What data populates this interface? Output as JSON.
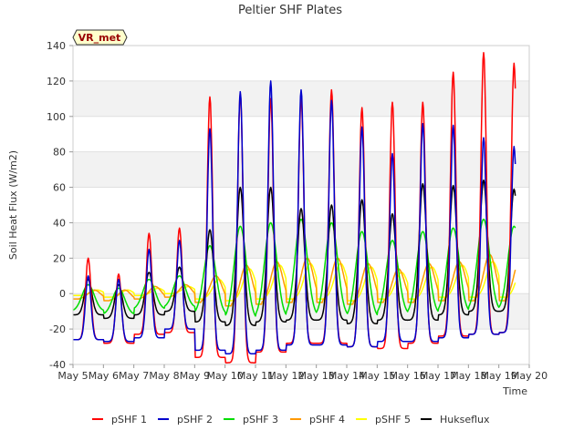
{
  "chart_data": {
    "type": "line",
    "title": "Peltier SHF Plates",
    "xlabel": "Time",
    "ylabel": "Soil Heat Flux (W/m2)",
    "badge": "VR_met",
    "ylim": [
      -40,
      140
    ],
    "yticks": [
      -40,
      -20,
      0,
      20,
      40,
      60,
      80,
      100,
      120,
      140
    ],
    "xlim": [
      5,
      20
    ],
    "xticks": [
      5,
      6,
      7,
      8,
      9,
      10,
      11,
      12,
      13,
      14,
      15,
      16,
      17,
      18,
      19,
      20
    ],
    "xtick_labels": [
      "May 5",
      "May 6",
      "May 7",
      "May 8",
      "May 9",
      "May 10",
      "May 11",
      "May 12",
      "May 13",
      "May 14",
      "May 15",
      "May 16",
      "May 17",
      "May 18",
      "May 19",
      "May 20"
    ],
    "grid_bands": true,
    "legend_position": "bottom",
    "series": [
      {
        "name": "pSHF 1",
        "color": "#ff0000",
        "peak_day": [
          5.5,
          6.5,
          7.5,
          8.5,
          9.5,
          10.5,
          11.5,
          12.5,
          13.5,
          14.5,
          15.5,
          16.5,
          17.5,
          18.5,
          19.5
        ],
        "peak": [
          20,
          11,
          34,
          37,
          111,
          113,
          110,
          110,
          115,
          105,
          108,
          108,
          125,
          136,
          130
        ],
        "trough": [
          -26,
          -28,
          -23,
          -22,
          -36,
          -39,
          -33,
          -28,
          -28,
          -30,
          -31,
          -28,
          -24,
          -23,
          -22
        ]
      },
      {
        "name": "pSHF 2",
        "color": "#0000cc",
        "peak_day": [
          5.5,
          6.5,
          7.5,
          8.5,
          9.5,
          10.5,
          11.5,
          12.5,
          13.5,
          14.5,
          15.5,
          16.5,
          17.5,
          18.5,
          19.5
        ],
        "peak": [
          10,
          8,
          25,
          30,
          93,
          114,
          120,
          115,
          109,
          94,
          79,
          96,
          95,
          88,
          83
        ],
        "trough": [
          -26,
          -27,
          -25,
          -20,
          -32,
          -34,
          -32,
          -29,
          -29,
          -30,
          -27,
          -27,
          -25,
          -23,
          -22
        ]
      },
      {
        "name": "pSHF 3",
        "color": "#00dd00",
        "peak_day": [
          5.5,
          6.5,
          7.5,
          8.5,
          9.5,
          10.5,
          11.5,
          12.5,
          13.5,
          14.5,
          15.5,
          16.5,
          17.5,
          18.5,
          19.5
        ],
        "peak": [
          5,
          3,
          8,
          10,
          27,
          38,
          40,
          42,
          40,
          35,
          30,
          35,
          37,
          42,
          38
        ],
        "trough": [
          -10,
          -12,
          -9,
          -8,
          -12,
          -15,
          -14,
          -13,
          -13,
          -14,
          -12,
          -12,
          -11,
          -10,
          -10
        ]
      },
      {
        "name": "pSHF 4",
        "color": "#ff9900",
        "peak_day": [
          5.7,
          6.7,
          7.7,
          8.7,
          9.7,
          10.7,
          11.7,
          12.7,
          13.7,
          14.7,
          15.7,
          16.7,
          17.7,
          18.7,
          19.7
        ],
        "peak": [
          2,
          2,
          4,
          5,
          10,
          16,
          18,
          20,
          20,
          17,
          14,
          17,
          18,
          22,
          20
        ],
        "trough": [
          -3,
          -4,
          -3,
          -2,
          -5,
          -7,
          -6,
          -5,
          -5,
          -6,
          -5,
          -5,
          -4,
          -4,
          -4
        ]
      },
      {
        "name": "pSHF 5",
        "color": "#ffff00",
        "peak_day": [
          5.8,
          6.8,
          7.8,
          8.8,
          9.8,
          10.8,
          11.8,
          12.8,
          13.8,
          14.8,
          15.8,
          16.8,
          17.8,
          18.8,
          19.8
        ],
        "peak": [
          2,
          2,
          3,
          4,
          8,
          14,
          16,
          17,
          17,
          15,
          12,
          15,
          16,
          18,
          17
        ],
        "trough": [
          -1,
          -2,
          -1,
          0,
          -3,
          -4,
          -3,
          -3,
          -3,
          -4,
          -3,
          -3,
          -2,
          -2,
          -2
        ]
      },
      {
        "name": "Hukseflux",
        "color": "#000000",
        "peak_day": [
          5.5,
          6.5,
          7.5,
          8.5,
          9.5,
          10.5,
          11.5,
          12.5,
          13.5,
          14.5,
          15.5,
          16.5,
          17.5,
          18.5,
          19.5
        ],
        "peak": [
          8,
          5,
          12,
          15,
          36,
          60,
          60,
          48,
          50,
          53,
          45,
          62,
          61,
          64,
          59
        ],
        "trough": [
          -12,
          -14,
          -12,
          -10,
          -16,
          -18,
          -16,
          -15,
          -15,
          -17,
          -15,
          -15,
          -12,
          -10,
          -10
        ]
      }
    ]
  }
}
